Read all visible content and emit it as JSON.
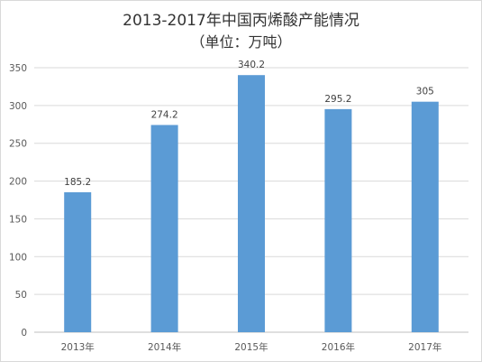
{
  "chart_data": {
    "type": "bar",
    "title": "2013-2017年中国丙烯酸产能情况",
    "subtitle": "（单位：万吨）",
    "categories": [
      "2013年",
      "2014年",
      "2015年",
      "2016年",
      "2017年"
    ],
    "values": [
      185.2,
      274.2,
      340.2,
      295.2,
      305
    ],
    "value_labels": [
      "185.2",
      "274.2",
      "340.2",
      "295.2",
      "305"
    ],
    "xlabel": "",
    "ylabel": "",
    "ylim": [
      0,
      350
    ],
    "yticks": [
      0,
      50,
      100,
      150,
      200,
      250,
      300,
      350
    ],
    "grid": true,
    "legend": "none",
    "bar_color": "#5b9bd5",
    "grid_color": "#d9d9d9"
  }
}
